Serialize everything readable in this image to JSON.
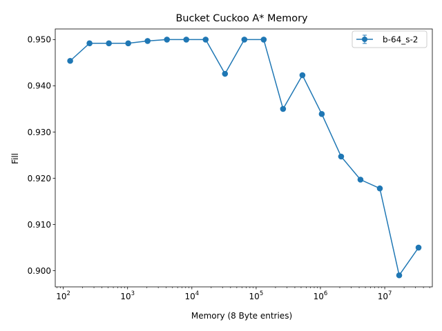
{
  "chart_data": {
    "type": "line",
    "title": "Bucket Cuckoo A* Memory",
    "xlabel": "Memory (8 Byte entries)",
    "ylabel": "Fill",
    "xscale": "log",
    "xlim": [
      75,
      55000000
    ],
    "ylim": [
      0.8965,
      0.9523
    ],
    "x_ticks": [
      {
        "value": 100,
        "base": "10",
        "exp": "2"
      },
      {
        "value": 1000,
        "base": "10",
        "exp": "3"
      },
      {
        "value": 10000,
        "base": "10",
        "exp": "4"
      },
      {
        "value": 100000,
        "base": "10",
        "exp": "5"
      },
      {
        "value": 1000000,
        "base": "10",
        "exp": "6"
      },
      {
        "value": 10000000,
        "base": "10",
        "exp": "7"
      }
    ],
    "y_ticks": [
      "0.900",
      "0.910",
      "0.920",
      "0.930",
      "0.940",
      "0.950"
    ],
    "grid": false,
    "legend_position": "top-right",
    "color": "#1f77b4",
    "series": [
      {
        "name": "b-64_s-2",
        "x": [
          128,
          256,
          512,
          1024,
          2048,
          4096,
          8192,
          16384,
          32768,
          65536,
          131072,
          262144,
          524288,
          1048576,
          2097152,
          4194304,
          8388608,
          16777216,
          33554432
        ],
        "y": [
          0.9454,
          0.9492,
          0.9492,
          0.9492,
          0.9497,
          0.95,
          0.95,
          0.95,
          0.9426,
          0.95,
          0.95,
          0.935,
          0.9423,
          0.9339,
          0.9247,
          0.9197,
          0.9178,
          0.899,
          0.905
        ]
      }
    ]
  }
}
